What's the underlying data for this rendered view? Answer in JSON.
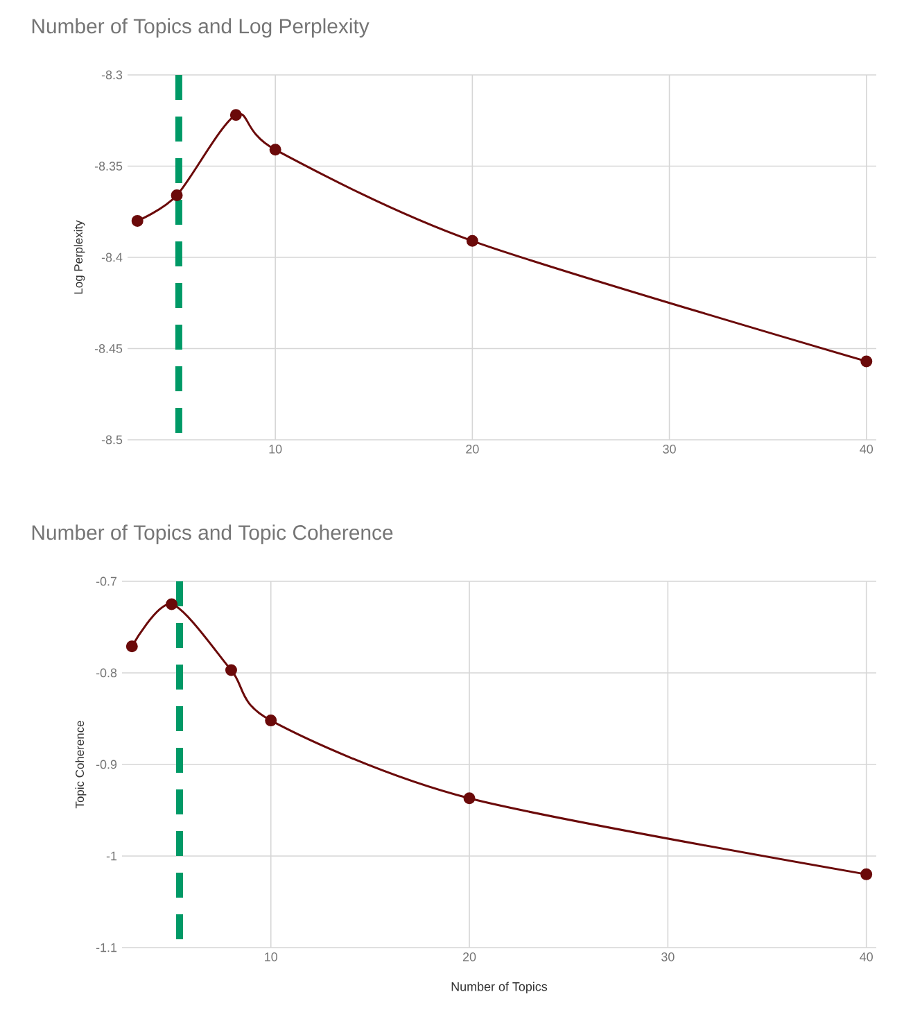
{
  "chart_data": [
    {
      "type": "line",
      "title": "Number of Topics and Log Perplexity",
      "ylabel": "Log Perplexity",
      "x": [
        3,
        5,
        8,
        10,
        20,
        40
      ],
      "series": [
        {
          "color": "#6b0a0a",
          "values": [
            -8.38,
            -8.366,
            -8.322,
            -8.341,
            -8.391,
            -8.457
          ]
        }
      ],
      "xlim": [
        2.5,
        40.5
      ],
      "ylim": [
        -8.5,
        -8.3
      ],
      "xticks": [
        10,
        20,
        30,
        40
      ],
      "yticks": [
        -8.5,
        -8.45,
        -8.4,
        -8.35,
        -8.3
      ],
      "grid": true,
      "marker": "circle",
      "line_style": "solid",
      "ref_lines": [
        {
          "axis": "x",
          "value": 5.1,
          "color": "#009966",
          "line_style": "dashed"
        }
      ]
    },
    {
      "type": "line",
      "title": "Number of Topics and Topic Coherence",
      "xlabel": "Number of Topics",
      "ylabel": "Topic Coherence",
      "x": [
        3,
        5,
        8,
        10,
        20,
        40
      ],
      "series": [
        {
          "color": "#6b0a0a",
          "values": [
            -0.771,
            -0.725,
            -0.797,
            -0.852,
            -0.937,
            -1.02
          ]
        }
      ],
      "xlim": [
        2.5,
        40.5
      ],
      "ylim": [
        -1.1,
        -0.7
      ],
      "xticks": [
        10,
        20,
        30,
        40
      ],
      "yticks": [
        -1.1,
        -1,
        -0.9,
        -0.8,
        -0.7
      ],
      "grid": true,
      "marker": "circle",
      "line_style": "solid",
      "ref_lines": [
        {
          "axis": "x",
          "value": 5.4,
          "color": "#009966",
          "line_style": "dashed"
        }
      ]
    }
  ]
}
